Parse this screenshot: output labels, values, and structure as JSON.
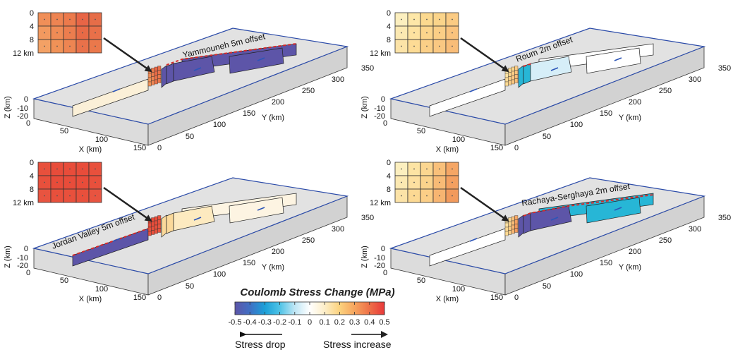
{
  "panels": [
    {
      "id": "yammouneh",
      "fault_label": "Yammouneh 5m offset",
      "inset_depths": [
        "0",
        "4",
        "8",
        "12 km"
      ],
      "inset_colors": [
        [
          "#f08f58",
          "#ee8452",
          "#ec7a4c",
          "#e86546",
          "#e66d48"
        ],
        [
          "#f2995f",
          "#ef8b55",
          "#ec7d4e",
          "#e76a46",
          "#e87049"
        ],
        [
          "#f3a165",
          "#f09257",
          "#ee8552",
          "#e9714a",
          "#ea784b"
        ]
      ],
      "fault_colors": {
        "south": "#fbf0d8",
        "bend": "#5d55a8",
        "north_a": "#5d55a8",
        "north_b": "#5d55a8"
      }
    },
    {
      "id": "roum",
      "fault_label": "Roum 2m offset",
      "inset_depths": [
        "0",
        "4",
        "8",
        "12 km"
      ],
      "inset_colors": [
        [
          "#fcefbf",
          "#fde7a8",
          "#fcd98f",
          "#fbd48a",
          "#fbcb83"
        ],
        [
          "#fce9b2",
          "#fde2a0",
          "#fcd58c",
          "#fbce86",
          "#fac37d"
        ],
        [
          "#fce3a7",
          "#fddb95",
          "#fbcf87",
          "#fac882",
          "#f9bd78"
        ]
      ],
      "fault_colors": {
        "south": "#ffffff",
        "bend": "#27b6d6",
        "north_a": "#d6eef8",
        "north_b": "#ffffff"
      }
    },
    {
      "id": "jordan",
      "fault_label": "Jordan Valley 5m offset",
      "inset_depths": [
        "0",
        "4",
        "8",
        "12 km"
      ],
      "inset_colors": [
        [
          "#e8503c",
          "#e84c3a",
          "#e84c3a",
          "#e84c3a",
          "#e8503c"
        ],
        [
          "#e8503c",
          "#e84c3a",
          "#e84c3a",
          "#e84c3a",
          "#e8503c"
        ],
        [
          "#e85440",
          "#e8503c",
          "#e8503c",
          "#e8503c",
          "#e85440"
        ]
      ],
      "fault_colors": {
        "south": "#5d55a8",
        "bend": "#fbd99a",
        "north_a": "#fdeac0",
        "north_b": "#fdf4e2"
      }
    },
    {
      "id": "rachaya",
      "fault_label": "Rachaya-Serghaya 2m offset",
      "inset_depths": [
        "0",
        "4",
        "8",
        "12 km"
      ],
      "inset_colors": [
        [
          "#fcefbf",
          "#fde4a4",
          "#fbd690",
          "#f9c07a",
          "#f5a665"
        ],
        [
          "#fce9b2",
          "#fde0a0",
          "#fbd38c",
          "#f8bb76",
          "#f4a060"
        ],
        [
          "#fce3a7",
          "#fcd993",
          "#fbce87",
          "#f7b571",
          "#f29a5c"
        ]
      ],
      "fault_colors": {
        "south": "#ffffff",
        "bend": "#5d55a8",
        "north_a": "#5d55a8",
        "north_b": "#27b6d6"
      }
    }
  ],
  "axes": {
    "z_label": "Z (km)",
    "z_ticks": [
      "0",
      "-10",
      "-20"
    ],
    "x_label": "X (km)",
    "x_ticks": [
      "0",
      "50",
      "100",
      "150"
    ],
    "y_label": "Y (km)",
    "y_ticks": [
      "0",
      "50",
      "100",
      "150",
      "200",
      "250",
      "300",
      "350"
    ]
  },
  "colorbar": {
    "title": "Coulomb Stress Change (MPa)",
    "tick_labels": [
      "-0.5",
      "-0.4",
      "-0.3",
      "-0.2",
      "-0.1",
      "0",
      "0.1",
      "0.2",
      "0.3",
      "0.4",
      "0.5"
    ],
    "min": -0.5,
    "max": 0.5,
    "colors": [
      "#5d55a8",
      "#3f6fc4",
      "#1ba0d8",
      "#4fc3e6",
      "#bfe6f5",
      "#ffffff",
      "#fdeec8",
      "#fbd27e",
      "#f6a45e",
      "#ee7048",
      "#e8383a"
    ],
    "stress_drop_label": "Stress drop",
    "stress_increase_label": "Stress increase"
  }
}
